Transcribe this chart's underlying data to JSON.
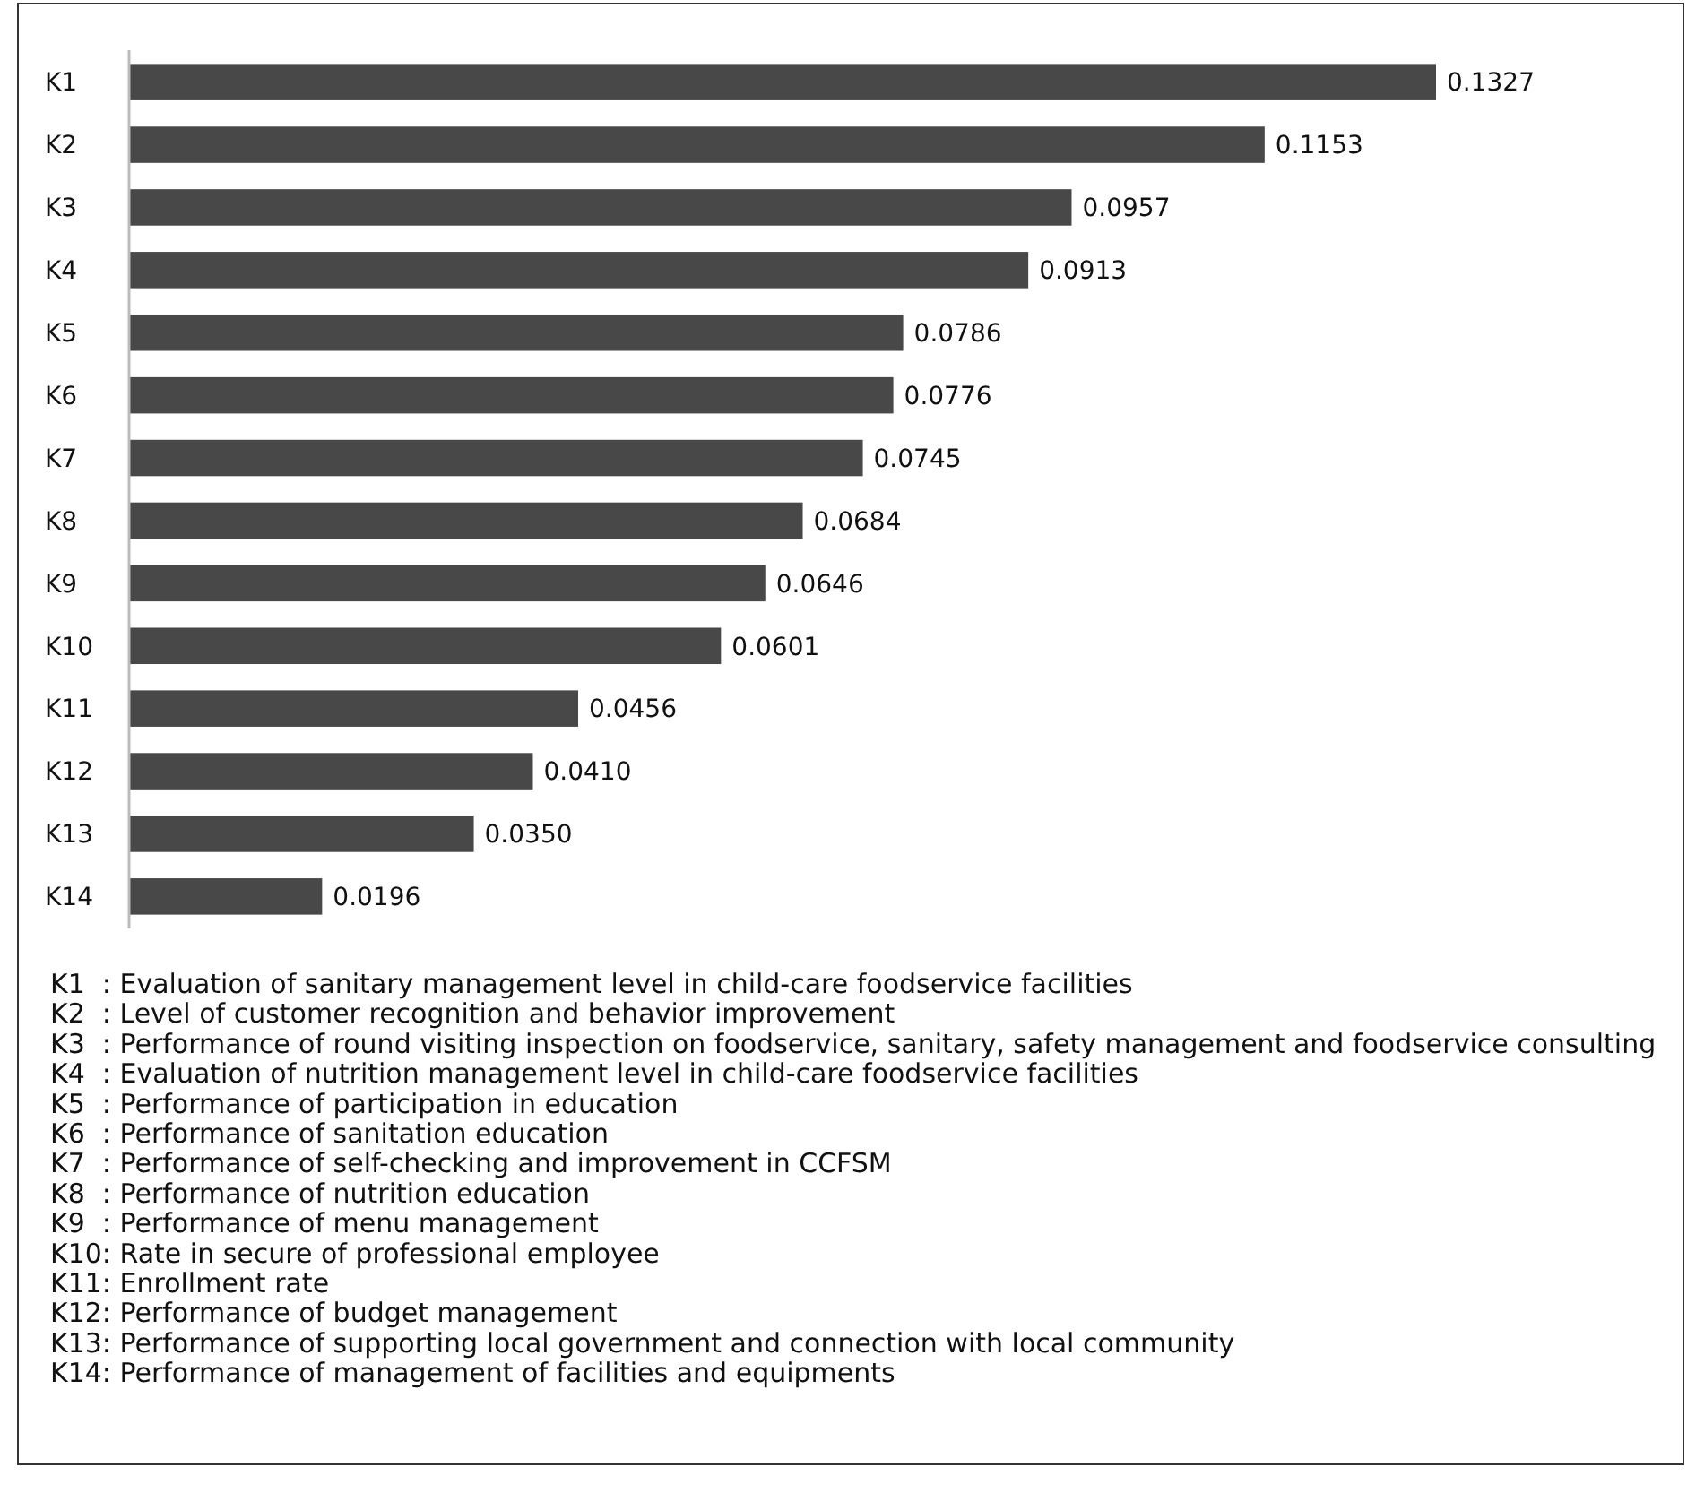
{
  "chart_data": {
    "type": "bar",
    "orientation": "horizontal",
    "categories": [
      "K1",
      "K2",
      "K3",
      "K4",
      "K5",
      "K6",
      "K7",
      "K8",
      "K9",
      "K10",
      "K11",
      "K12",
      "K13",
      "K14"
    ],
    "values": [
      0.1327,
      0.1153,
      0.0957,
      0.0913,
      0.0786,
      0.0776,
      0.0745,
      0.0684,
      0.0646,
      0.0601,
      0.0456,
      0.041,
      0.035,
      0.0196
    ],
    "value_labels": [
      "0.1327",
      "0.1153",
      "0.0957",
      "0.0913",
      "0.0786",
      "0.0776",
      "0.0745",
      "0.0684",
      "0.0646",
      "0.0601",
      "0.0456",
      "0.0410",
      "0.0350",
      "0.0196"
    ],
    "color": "#484848",
    "annotations": [
      "K1  : Evaluation of sanitary management level in child-care foodservice facilities",
      "K2  : Level of customer recognition and behavior improvement",
      "K3  : Performance of round visiting inspection on foodservice, sanitary, safety management and foodservice consulting",
      "K4  : Evaluation of nutrition management level in child-care foodservice facilities",
      "K5  : Performance of participation in education",
      "K6  : Performance of sanitation education",
      "K7  : Performance of self-checking and improvement in CCFSM",
      "K8  : Performance of nutrition education",
      "K9  : Performance of menu management",
      "K10: Rate in secure of professional employee",
      "K11: Enrollment rate",
      "K12: Performance of budget management",
      "K13: Performance of supporting local government and connection with local community",
      "K14: Performance of management of facilities and equipments"
    ]
  }
}
